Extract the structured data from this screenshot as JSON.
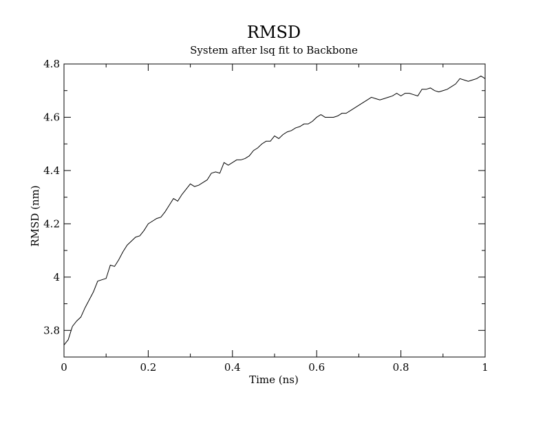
{
  "chart_data": {
    "type": "line",
    "title": "RMSD",
    "subtitle": "System after lsq fit to Backbone",
    "xlabel": "Time (ns)",
    "ylabel": "RMSD (nm)",
    "xlim": [
      0,
      1
    ],
    "ylim": [
      3.7,
      4.8
    ],
    "x_ticks": [
      0,
      0.2,
      0.4,
      0.6,
      0.8,
      1
    ],
    "x_tick_labels": [
      "0",
      "0.2",
      "0.4",
      "0.6",
      "0.8",
      "1"
    ],
    "y_ticks": [
      3.8,
      4.0,
      4.2,
      4.4,
      4.6,
      4.8
    ],
    "y_tick_labels": [
      "3.8",
      "4",
      "4.2",
      "4.4",
      "4.6",
      "4.8"
    ],
    "grid": false,
    "line_color": "#000000",
    "series": [
      {
        "x": [
          0,
          0.01,
          0.02,
          0.03,
          0.04,
          0.05,
          0.06,
          0.07,
          0.08,
          0.09,
          0.1,
          0.11,
          0.12,
          0.13,
          0.14,
          0.15,
          0.16,
          0.17,
          0.18,
          0.19,
          0.2,
          0.21,
          0.22,
          0.23,
          0.24,
          0.25,
          0.26,
          0.27,
          0.28,
          0.29,
          0.3,
          0.31,
          0.32,
          0.33,
          0.34,
          0.35,
          0.36,
          0.37,
          0.38,
          0.39,
          0.4,
          0.41,
          0.42,
          0.43,
          0.44,
          0.45,
          0.46,
          0.47,
          0.48,
          0.49,
          0.5,
          0.51,
          0.52,
          0.53,
          0.54,
          0.55,
          0.56,
          0.57,
          0.58,
          0.59,
          0.6,
          0.61,
          0.62,
          0.63,
          0.64,
          0.65,
          0.66,
          0.67,
          0.68,
          0.69,
          0.7,
          0.71,
          0.72,
          0.73,
          0.74,
          0.75,
          0.76,
          0.77,
          0.78,
          0.79,
          0.8,
          0.81,
          0.82,
          0.83,
          0.84,
          0.85,
          0.86,
          0.87,
          0.88,
          0.89,
          0.9,
          0.91,
          0.92,
          0.93,
          0.94,
          0.95,
          0.96,
          0.97,
          0.98,
          0.99,
          1.0
        ],
        "y": [
          3.745,
          3.765,
          3.815,
          3.835,
          3.85,
          3.885,
          3.915,
          3.945,
          3.985,
          3.99,
          3.995,
          4.045,
          4.04,
          4.065,
          4.095,
          4.12,
          4.135,
          4.15,
          4.155,
          4.175,
          4.2,
          4.21,
          4.22,
          4.225,
          4.245,
          4.27,
          4.295,
          4.285,
          4.31,
          4.33,
          4.35,
          4.34,
          4.345,
          4.355,
          4.365,
          4.39,
          4.395,
          4.39,
          4.43,
          4.42,
          4.43,
          4.44,
          4.44,
          4.445,
          4.455,
          4.475,
          4.485,
          4.5,
          4.51,
          4.51,
          4.53,
          4.52,
          4.535,
          4.545,
          4.55,
          4.56,
          4.565,
          4.575,
          4.575,
          4.585,
          4.6,
          4.61,
          4.6,
          4.6,
          4.6,
          4.605,
          4.615,
          4.615,
          4.625,
          4.635,
          4.645,
          4.655,
          4.665,
          4.675,
          4.67,
          4.665,
          4.67,
          4.675,
          4.68,
          4.69,
          4.68,
          4.69,
          4.69,
          4.685,
          4.68,
          4.705,
          4.705,
          4.71,
          4.7,
          4.695,
          4.7,
          4.705,
          4.715,
          4.725,
          4.745,
          4.74,
          4.735,
          4.74,
          4.745,
          4.755,
          4.745
        ]
      }
    ]
  }
}
